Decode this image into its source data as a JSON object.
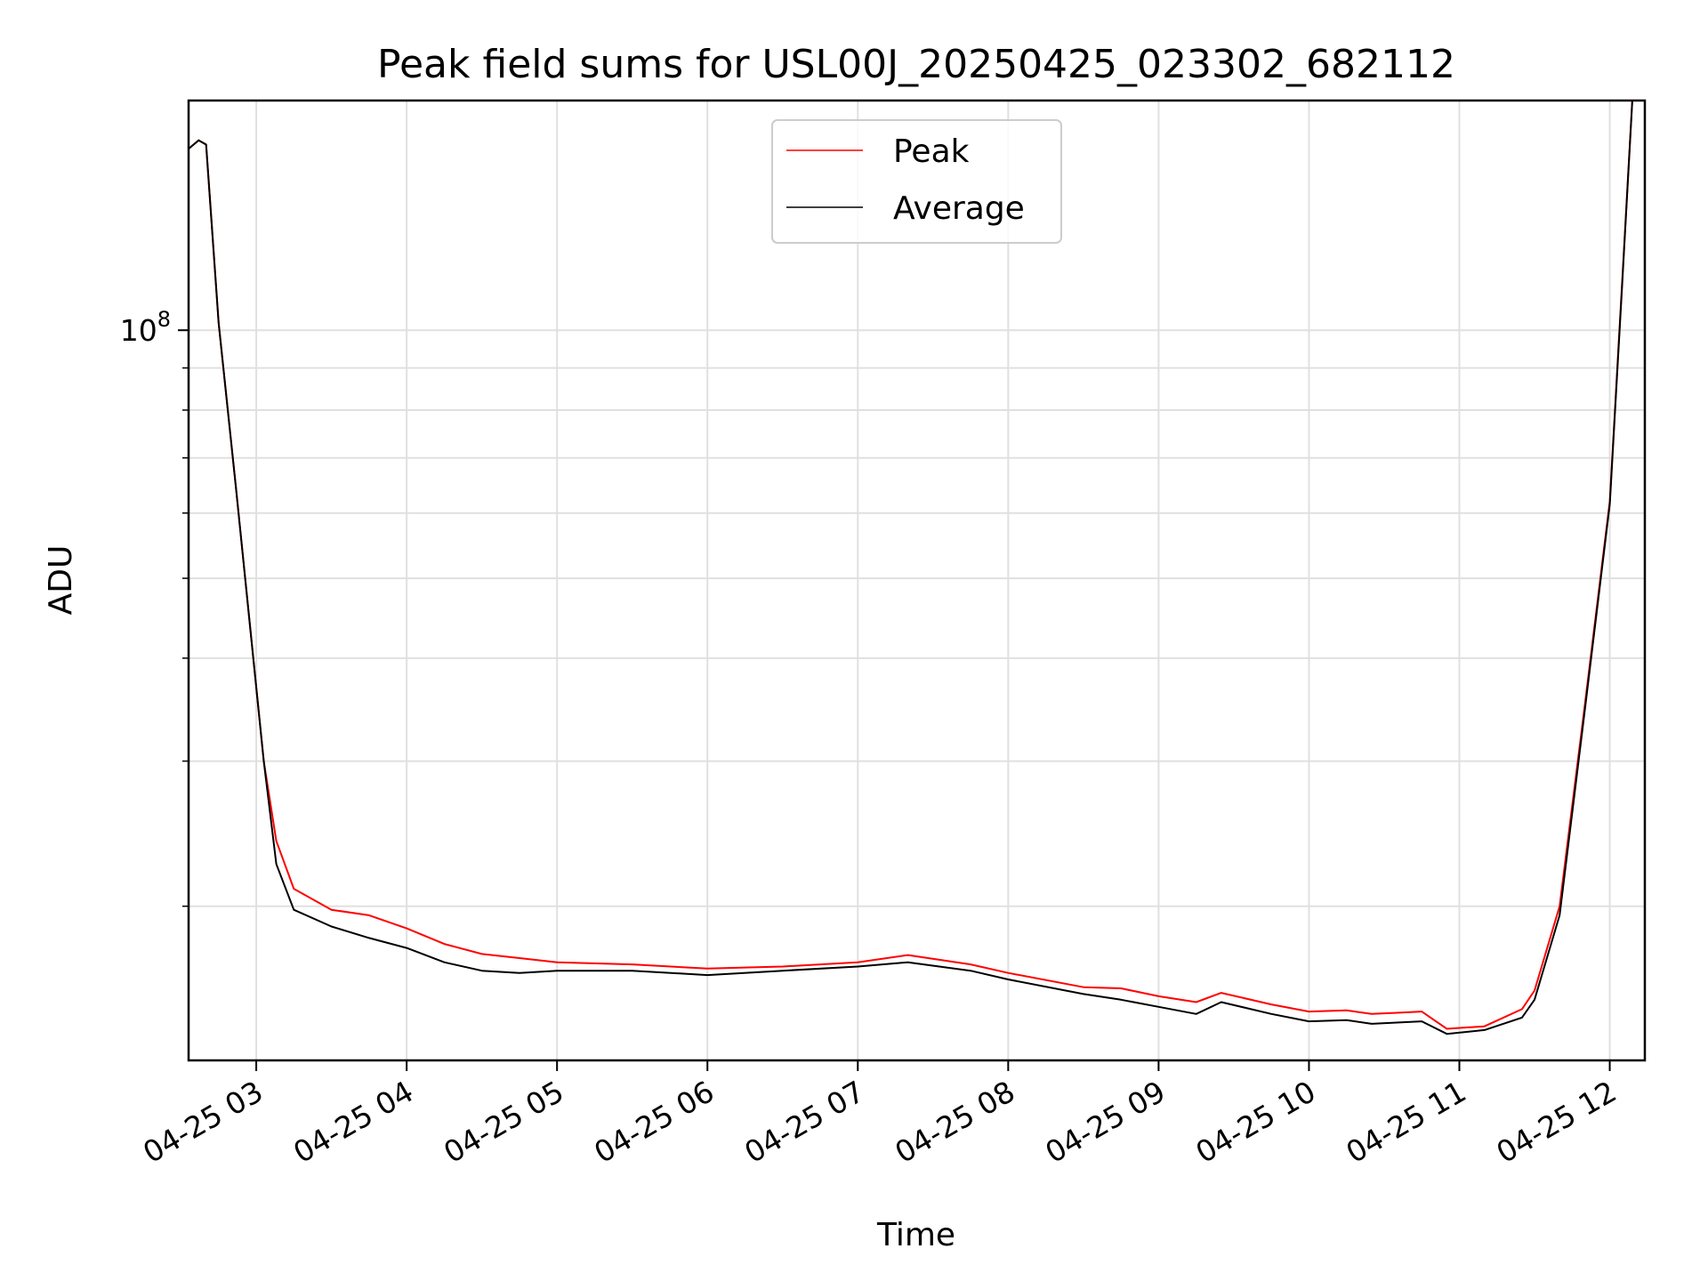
{
  "chart_data": {
    "type": "line",
    "title": "Peak field sums for USL00J_20250425_023302_682112",
    "xlabel": "Time",
    "ylabel": "ADU",
    "y_scale": "log",
    "ylim": [
      13000000,
      190000000
    ],
    "xlim": [
      "2025-04-25 02:33",
      "2025-04-25 12:14"
    ],
    "x_ticks": [
      {
        "value": "2025-04-25 03:00",
        "label": "04-25 03"
      },
      {
        "value": "2025-04-25 04:00",
        "label": "04-25 04"
      },
      {
        "value": "2025-04-25 05:00",
        "label": "04-25 05"
      },
      {
        "value": "2025-04-25 06:00",
        "label": "04-25 06"
      },
      {
        "value": "2025-04-25 07:00",
        "label": "04-25 07"
      },
      {
        "value": "2025-04-25 08:00",
        "label": "04-25 08"
      },
      {
        "value": "2025-04-25 09:00",
        "label": "04-25 09"
      },
      {
        "value": "2025-04-25 10:00",
        "label": "04-25 10"
      },
      {
        "value": "2025-04-25 11:00",
        "label": "04-25 11"
      },
      {
        "value": "2025-04-25 12:00",
        "label": "04-25 12"
      }
    ],
    "y_ticks": [
      {
        "value": 100000000,
        "base": "10",
        "exponent": "8"
      }
    ],
    "grid": true,
    "legend_position": "top-center",
    "colors": {
      "Peak": "#ff0000",
      "Average": "#000000"
    },
    "series": [
      {
        "name": "Peak",
        "x": [
          "2025-04-25 02:33",
          "2025-04-25 02:37",
          "2025-04-25 02:40",
          "2025-04-25 02:45",
          "2025-04-25 02:52",
          "2025-04-25 03:03",
          "2025-04-25 03:08",
          "2025-04-25 03:15",
          "2025-04-25 03:30",
          "2025-04-25 03:45",
          "2025-04-25 04:00",
          "2025-04-25 04:15",
          "2025-04-25 04:30",
          "2025-04-25 04:45",
          "2025-04-25 05:00",
          "2025-04-25 05:30",
          "2025-04-25 06:00",
          "2025-04-25 06:30",
          "2025-04-25 07:00",
          "2025-04-25 07:20",
          "2025-04-25 07:45",
          "2025-04-25 08:00",
          "2025-04-25 08:30",
          "2025-04-25 08:45",
          "2025-04-25 09:00",
          "2025-04-25 09:15",
          "2025-04-25 09:25",
          "2025-04-25 09:45",
          "2025-04-25 10:00",
          "2025-04-25 10:15",
          "2025-04-25 10:25",
          "2025-04-25 10:35",
          "2025-04-25 10:45",
          "2025-04-25 10:55",
          "2025-04-25 11:10",
          "2025-04-25 11:25",
          "2025-04-25 11:30",
          "2025-04-25 11:40",
          "2025-04-25 11:50",
          "2025-04-25 12:00",
          "2025-04-25 12:05",
          "2025-04-25 12:09"
        ],
        "y": [
          166000000,
          170000000,
          168000000,
          102000000,
          64000000,
          30000000,
          24000000,
          21000000,
          19800000,
          19500000,
          18800000,
          18000000,
          17500000,
          17300000,
          17100000,
          17000000,
          16800000,
          16900000,
          17100000,
          17450000,
          17000000,
          16600000,
          15950000,
          15900000,
          15550000,
          15300000,
          15700000,
          15200000,
          14900000,
          14950000,
          14800000,
          14850000,
          14900000,
          14200000,
          14300000,
          15000000,
          15800000,
          20000000,
          35000000,
          62000000,
          115000000,
          190000000
        ]
      },
      {
        "name": "Average",
        "x": [
          "2025-04-25 02:33",
          "2025-04-25 02:37",
          "2025-04-25 02:40",
          "2025-04-25 02:45",
          "2025-04-25 02:52",
          "2025-04-25 03:03",
          "2025-04-25 03:08",
          "2025-04-25 03:15",
          "2025-04-25 03:30",
          "2025-04-25 03:45",
          "2025-04-25 04:00",
          "2025-04-25 04:15",
          "2025-04-25 04:30",
          "2025-04-25 04:45",
          "2025-04-25 05:00",
          "2025-04-25 05:30",
          "2025-04-25 06:00",
          "2025-04-25 06:30",
          "2025-04-25 07:00",
          "2025-04-25 07:20",
          "2025-04-25 07:45",
          "2025-04-25 08:00",
          "2025-04-25 08:30",
          "2025-04-25 08:45",
          "2025-04-25 09:00",
          "2025-04-25 09:15",
          "2025-04-25 09:25",
          "2025-04-25 09:45",
          "2025-04-25 10:00",
          "2025-04-25 10:15",
          "2025-04-25 10:25",
          "2025-04-25 10:35",
          "2025-04-25 10:45",
          "2025-04-25 10:55",
          "2025-04-25 11:10",
          "2025-04-25 11:25",
          "2025-04-25 11:30",
          "2025-04-25 11:40",
          "2025-04-25 11:50",
          "2025-04-25 12:00",
          "2025-04-25 12:05",
          "2025-04-25 12:09"
        ],
        "y": [
          166000000,
          170000000,
          168000000,
          102000000,
          64000000,
          30000000,
          22500000,
          19800000,
          18900000,
          18300000,
          17800000,
          17100000,
          16700000,
          16600000,
          16700000,
          16700000,
          16500000,
          16700000,
          16900000,
          17100000,
          16700000,
          16300000,
          15650000,
          15400000,
          15100000,
          14800000,
          15300000,
          14800000,
          14500000,
          14550000,
          14400000,
          14450000,
          14500000,
          14000000,
          14150000,
          14650000,
          15400000,
          19500000,
          34500000,
          61500000,
          114000000,
          190000000
        ]
      }
    ]
  }
}
